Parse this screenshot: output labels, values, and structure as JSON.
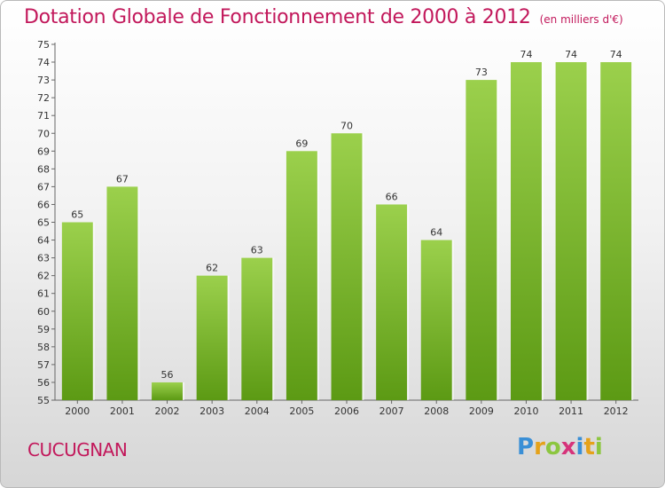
{
  "header": {
    "title": "Dotation Globale de Fonctionnement de 2000 à 2012",
    "subtitle": "(en milliers d'€)"
  },
  "footer": {
    "commune": "CUCUGNAN",
    "logo_letters": [
      "P",
      "r",
      "o",
      "x",
      "i",
      "t",
      "i"
    ],
    "logo_colors": [
      "#3a8fd6",
      "#e5a21a",
      "#8cc63f",
      "#d6337a",
      "#3a8fd6",
      "#e5a21a",
      "#8cc63f"
    ]
  },
  "colors": {
    "bar_light": "#9bd04c",
    "bar_dark": "#5c9a14",
    "title": "#c2185b"
  },
  "chart_data": {
    "type": "bar",
    "title": "Dotation Globale de Fonctionnement de 2000 à 2012",
    "subtitle": "(en milliers d'€)",
    "xlabel": "",
    "ylabel": "",
    "categories": [
      "2000",
      "2001",
      "2002",
      "2003",
      "2004",
      "2005",
      "2006",
      "2007",
      "2008",
      "2009",
      "2010",
      "2011",
      "2012"
    ],
    "values": [
      65,
      67,
      56,
      62,
      63,
      69,
      70,
      66,
      64,
      73,
      74,
      74,
      74
    ],
    "ylim": [
      55,
      75
    ],
    "yticks": [
      55,
      56,
      57,
      58,
      59,
      60,
      61,
      62,
      63,
      64,
      65,
      66,
      67,
      68,
      69,
      70,
      71,
      72,
      73,
      74,
      75
    ],
    "grid": false,
    "data_labels": true
  }
}
